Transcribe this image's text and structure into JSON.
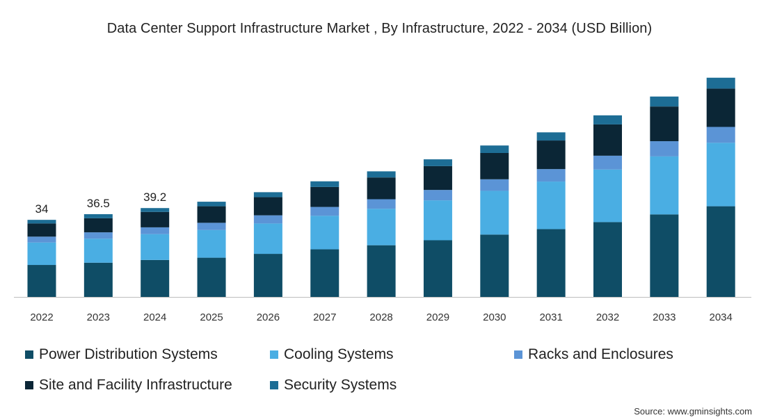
{
  "title": "Data Center Support Infrastructure Market , By Infrastructure, 2022 - 2034 (USD Billion)",
  "source": "Source: www.gminsights.com",
  "chart_data": {
    "type": "bar",
    "stacked": true,
    "title": "Data Center Support Infrastructure Market , By Infrastructure, 2022 - 2034 (USD Billion)",
    "xlabel": "",
    "ylabel": "",
    "ylim": [
      0,
      100
    ],
    "grid": false,
    "legend_position": "bottom",
    "categories": [
      "2022",
      "2023",
      "2024",
      "2025",
      "2026",
      "2027",
      "2028",
      "2029",
      "2030",
      "2031",
      "2032",
      "2033",
      "2034"
    ],
    "series": [
      {
        "name": "Power Distribution Systems",
        "color": "#0f4d66",
        "values": [
          14.1,
          15.1,
          16.3,
          17.3,
          19.0,
          21.0,
          22.8,
          25.0,
          27.5,
          29.9,
          33.0,
          36.4,
          40.0
        ]
      },
      {
        "name": "Cooling Systems",
        "color": "#4aaee3",
        "values": [
          9.9,
          10.6,
          11.4,
          12.2,
          13.4,
          14.8,
          16.1,
          17.6,
          19.3,
          21.0,
          23.2,
          25.6,
          28.0
        ]
      },
      {
        "name": "Racks and Enclosures",
        "color": "#5b94d6",
        "values": [
          2.6,
          2.8,
          3.0,
          3.2,
          3.6,
          3.9,
          4.2,
          4.6,
          5.1,
          5.5,
          6.1,
          6.7,
          7.0
        ]
      },
      {
        "name": "Site and Facility Infrastructure",
        "color": "#0b2636",
        "values": [
          5.8,
          6.2,
          6.8,
          7.3,
          8.0,
          8.8,
          9.6,
          10.5,
          11.6,
          12.6,
          13.8,
          15.3,
          16.9
        ]
      },
      {
        "name": "Security Systems",
        "color": "#1d6d95",
        "values": [
          1.6,
          1.8,
          1.7,
          2.0,
          2.2,
          2.5,
          2.7,
          3.0,
          3.3,
          3.6,
          4.0,
          4.4,
          4.8
        ]
      }
    ],
    "data_labels": [
      {
        "category": "2022",
        "text": "34"
      },
      {
        "category": "2023",
        "text": "36.5"
      },
      {
        "category": "2024",
        "text": "39.2"
      }
    ]
  }
}
